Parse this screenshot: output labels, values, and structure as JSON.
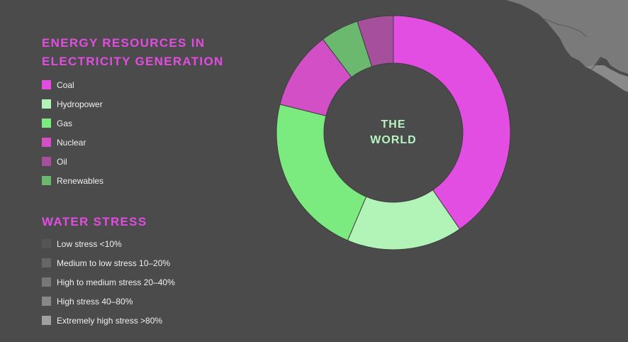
{
  "energy": {
    "title_line1": "ENERGY RESOURCES IN",
    "title_line2": "ELECTRICITY GENERATION",
    "items": [
      {
        "label": "Coal",
        "color": "#e34ee2"
      },
      {
        "label": "Hydropower",
        "color": "#b2f4b8"
      },
      {
        "label": "Gas",
        "color": "#7beb80"
      },
      {
        "label": "Nuclear",
        "color": "#d34fc6"
      },
      {
        "label": "Oil",
        "color": "#a64f9c"
      },
      {
        "label": "Renewables",
        "color": "#6ab96f"
      }
    ]
  },
  "water": {
    "title": "WATER STRESS",
    "items": [
      {
        "label": "Low stress <10%",
        "color": "#555556"
      },
      {
        "label": "Medium to low stress 10–20%",
        "color": "#666667"
      },
      {
        "label": "High to medium stress 20–40%",
        "color": "#777778"
      },
      {
        "label": "High stress 40–80%",
        "color": "#888889"
      },
      {
        "label": "Extremely high stress >80%",
        "color": "#a0a0a1"
      }
    ]
  },
  "chart_data": {
    "type": "pie",
    "center_label_line1": "THE",
    "center_label_line2": "WORLD",
    "categories": [
      "Coal",
      "Hydropower",
      "Gas",
      "Nuclear",
      "Oil",
      "Renewables"
    ],
    "values": [
      40.4,
      16.0,
      22.5,
      10.8,
      5.0,
      5.3
    ],
    "slice_order_clockwise_from_top": [
      "Coal",
      "Hydropower",
      "Gas",
      "Nuclear",
      "Renewables",
      "Oil"
    ],
    "colors": {
      "Coal": "#e34ee2",
      "Hydropower": "#b2f4b8",
      "Gas": "#7beb80",
      "Nuclear": "#d34fc6",
      "Oil": "#a64f9c",
      "Renewables": "#6ab96f"
    },
    "donut": true,
    "legend_placement": "left"
  }
}
